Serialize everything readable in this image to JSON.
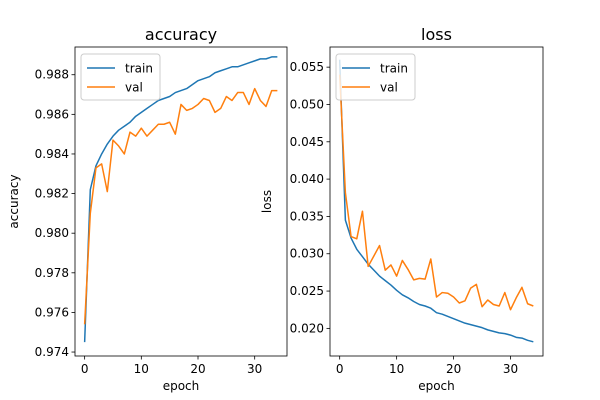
{
  "chart_data": [
    {
      "type": "line",
      "title": "accuracy",
      "xlabel": "epoch",
      "ylabel": "accuracy",
      "xlim": [
        -1.7,
        35.7
      ],
      "ylim": [
        0.9738,
        0.9894
      ],
      "xticks": [
        0,
        10,
        20,
        30
      ],
      "xtick_labels": [
        "0",
        "10",
        "20",
        "30"
      ],
      "yticks": [
        0.974,
        0.976,
        0.978,
        0.98,
        0.982,
        0.984,
        0.986,
        0.988
      ],
      "ytick_labels": [
        "0.974",
        "0.976",
        "0.978",
        "0.980",
        "0.982",
        "0.984",
        "0.986",
        "0.988"
      ],
      "legend": "upper-left",
      "grid": false,
      "x": [
        0,
        1,
        2,
        3,
        4,
        5,
        6,
        7,
        8,
        9,
        10,
        11,
        12,
        13,
        14,
        15,
        16,
        17,
        18,
        19,
        20,
        21,
        22,
        23,
        24,
        25,
        26,
        27,
        28,
        29,
        30,
        31,
        32,
        33,
        34
      ],
      "series": [
        {
          "name": "train",
          "color": "#1f77b4",
          "values": [
            0.9745,
            0.9822,
            0.9834,
            0.984,
            0.9845,
            0.9849,
            0.9852,
            0.9854,
            0.9856,
            0.9859,
            0.9861,
            0.9863,
            0.9865,
            0.9867,
            0.9868,
            0.9869,
            0.9871,
            0.9872,
            0.9873,
            0.9875,
            0.9877,
            0.9878,
            0.9879,
            0.9881,
            0.9882,
            0.9883,
            0.9884,
            0.9884,
            0.9885,
            0.9886,
            0.9887,
            0.9888,
            0.9888,
            0.9889,
            0.9889
          ]
        },
        {
          "name": "val",
          "color": "#ff7f0e",
          "values": [
            0.9754,
            0.981,
            0.9833,
            0.9835,
            0.9821,
            0.9847,
            0.9844,
            0.984,
            0.9851,
            0.9849,
            0.9853,
            0.9849,
            0.9852,
            0.9855,
            0.9855,
            0.9856,
            0.985,
            0.9865,
            0.9862,
            0.9863,
            0.9865,
            0.9868,
            0.9867,
            0.9861,
            0.9863,
            0.9869,
            0.9867,
            0.9871,
            0.9871,
            0.9865,
            0.9873,
            0.9867,
            0.9864,
            0.9872,
            0.9872
          ]
        }
      ]
    },
    {
      "type": "line",
      "title": "loss",
      "xlabel": "epoch",
      "ylabel": "loss",
      "xlim": [
        -1.7,
        35.7
      ],
      "ylim": [
        0.0163,
        0.0577
      ],
      "xticks": [
        0,
        10,
        20,
        30
      ],
      "xtick_labels": [
        "0",
        "10",
        "20",
        "30"
      ],
      "yticks": [
        0.02,
        0.025,
        0.03,
        0.035,
        0.04,
        0.045,
        0.05,
        0.055
      ],
      "ytick_labels": [
        "0.020",
        "0.025",
        "0.030",
        "0.035",
        "0.040",
        "0.045",
        "0.050",
        "0.055"
      ],
      "legend": "upper-left",
      "grid": false,
      "x": [
        0,
        1,
        2,
        3,
        4,
        5,
        6,
        7,
        8,
        9,
        10,
        11,
        12,
        13,
        14,
        15,
        16,
        17,
        18,
        19,
        20,
        21,
        22,
        23,
        24,
        25,
        26,
        27,
        28,
        29,
        30,
        31,
        32,
        33,
        34
      ],
      "series": [
        {
          "name": "train",
          "color": "#1f77b4",
          "values": [
            0.056,
            0.0345,
            0.0321,
            0.0306,
            0.0296,
            0.0286,
            0.0278,
            0.027,
            0.0264,
            0.0258,
            0.0251,
            0.0245,
            0.0241,
            0.0236,
            0.0232,
            0.023,
            0.0227,
            0.0221,
            0.0219,
            0.0216,
            0.0213,
            0.021,
            0.0207,
            0.0205,
            0.0203,
            0.0201,
            0.0198,
            0.0196,
            0.0194,
            0.0193,
            0.0191,
            0.0188,
            0.0187,
            0.0184,
            0.0182
          ]
        },
        {
          "name": "val",
          "color": "#ff7f0e",
          "values": [
            0.054,
            0.0382,
            0.0323,
            0.032,
            0.0357,
            0.0283,
            0.0297,
            0.0311,
            0.0278,
            0.0285,
            0.027,
            0.0291,
            0.0279,
            0.0265,
            0.0267,
            0.0266,
            0.0293,
            0.0242,
            0.0248,
            0.0247,
            0.0242,
            0.0234,
            0.0237,
            0.0254,
            0.0259,
            0.0229,
            0.0238,
            0.0232,
            0.023,
            0.0248,
            0.0225,
            0.0241,
            0.0255,
            0.0233,
            0.023
          ]
        }
      ]
    }
  ]
}
